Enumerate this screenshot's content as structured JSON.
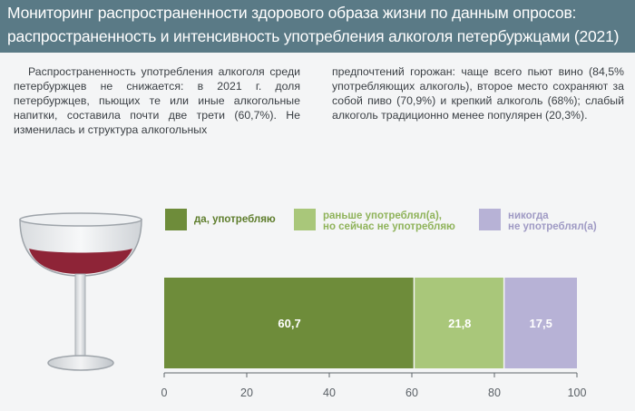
{
  "header": {
    "line1": "Мониторинг распространенности здорового образа жизни по данным опросов:",
    "line2": "распространенность и интенсивность употребления алкоголя петербуржцами (2021)"
  },
  "text": {
    "left": "Распространенность употребления алкоголя среди петербуржцев не снижается: в 2021 г. доля петербуржцев, пьющих те или иные алкогольные напитки, составила почти две трети (60,7%). Не изменилась и структура алкогольных",
    "right": "предпочтений горожан: чаще всего пьют вино (84,5% употребляющих алкоголь), второе место сохраняют за собой пиво (70,9%) и крепкий алкоголь (68%); слабый алкоголь традиционно менее популярен (20,3%)."
  },
  "colors": {
    "header_bg": "#5a7a86",
    "drink": "#6e8c3a",
    "former": "#a9c77a",
    "never": "#b7b2d6",
    "wine": "#8e2437"
  },
  "icons": {
    "illustration": "wine-glass-icon"
  },
  "chart_data": {
    "type": "bar",
    "orientation": "horizontal",
    "stacked": true,
    "xlim": [
      0,
      100
    ],
    "xticks": [
      "0",
      "20",
      "40",
      "60",
      "80",
      "100"
    ],
    "legend_position": "top",
    "series": [
      {
        "name": "да, употребляю",
        "value": 60.7,
        "label": "60,7",
        "legend_lines": [
          "да, употребляю"
        ],
        "color": "#6e8c3a",
        "legend_color": "#5e7d2c"
      },
      {
        "name": "раньше употреблял(а), но сейчас не употребляю",
        "value": 21.8,
        "label": "21,8",
        "legend_lines": [
          "раньше употреблял(а),",
          "но сейчас не употребляю"
        ],
        "color": "#a9c77a",
        "legend_color": "#8fb35a"
      },
      {
        "name": "никогда не употреблял(а)",
        "value": 17.5,
        "label": "17,5",
        "legend_lines": [
          "никогда",
          "не употреблял(а)"
        ],
        "color": "#b7b2d6",
        "legend_color": "#9f9ac4"
      }
    ]
  }
}
